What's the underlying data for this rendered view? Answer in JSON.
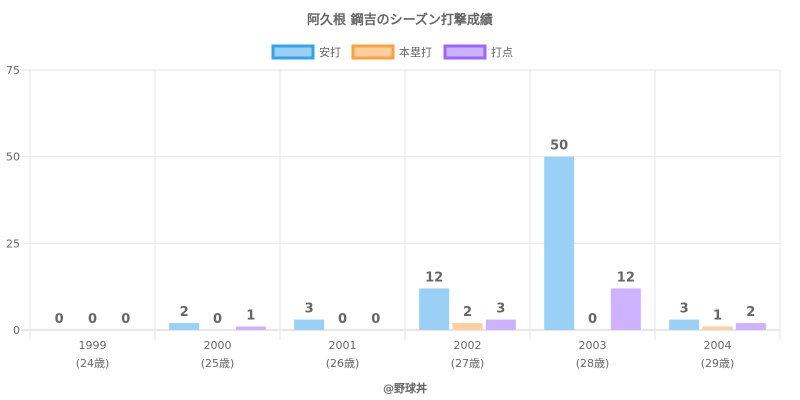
{
  "chart_data": {
    "type": "bar",
    "title": "阿久根 鋼吉のシーズン打撃成績",
    "categories": [
      "1999",
      "2000",
      "2001",
      "2002",
      "2003",
      "2004"
    ],
    "category_sublabels": [
      "(24歳)",
      "(25歳)",
      "(26歳)",
      "(27歳)",
      "(28歳)",
      "(29歳)"
    ],
    "series": [
      {
        "name": "安打",
        "values": [
          0,
          2,
          3,
          12,
          50,
          3
        ],
        "color": "#9ad0f5",
        "border": "#36a2eb"
      },
      {
        "name": "本塁打",
        "values": [
          0,
          0,
          0,
          2,
          0,
          1
        ],
        "color": "#ffcf9f",
        "border": "#ff9f40"
      },
      {
        "name": "打点",
        "values": [
          0,
          1,
          0,
          3,
          12,
          2
        ],
        "color": "#ccb2ff",
        "border": "#9966ff"
      }
    ],
    "ylim": [
      0,
      75
    ],
    "yticks": [
      0,
      25,
      50,
      75
    ],
    "grid": true,
    "legend": "top",
    "footer": "@野球丼"
  }
}
